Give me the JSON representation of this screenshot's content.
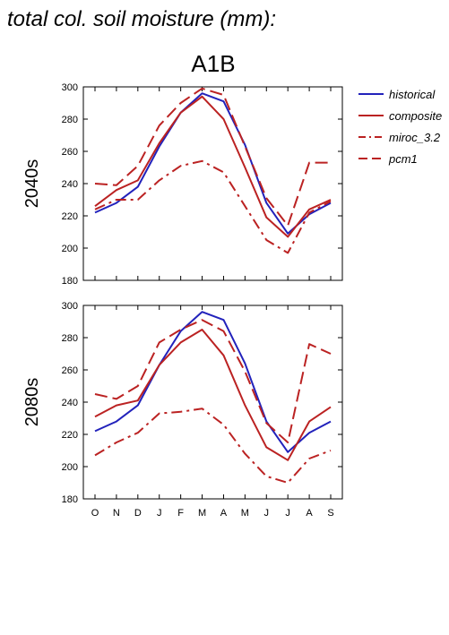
{
  "title": "total col. soil moisture (mm):",
  "scenario": "A1B",
  "colors": {
    "historical": "#2222bb",
    "model": "#bb2222"
  },
  "legend": [
    {
      "name": "historical",
      "color": "#2222bb",
      "dash": "solid"
    },
    {
      "name": "composite",
      "color": "#bb2222",
      "dash": "solid"
    },
    {
      "name": "miroc_3.2",
      "color": "#bb2222",
      "dash": "dashdot"
    },
    {
      "name": "pcm1",
      "color": "#bb2222",
      "dash": "dashed"
    }
  ],
  "chart_data": [
    {
      "type": "line",
      "panel_label": "2040s",
      "categories": [
        "O",
        "N",
        "D",
        "J",
        "F",
        "M",
        "A",
        "M",
        "J",
        "J",
        "A",
        "S"
      ],
      "ylim": [
        180,
        300
      ],
      "yticks": [
        180,
        200,
        220,
        240,
        260,
        280,
        300
      ],
      "series": [
        {
          "name": "historical",
          "values": [
            222,
            228,
            238,
            263,
            284,
            296,
            291,
            264,
            228,
            209,
            221,
            228
          ]
        },
        {
          "name": "composite",
          "values": [
            226,
            236,
            242,
            265,
            284,
            294,
            280,
            250,
            219,
            207,
            224,
            230
          ]
        },
        {
          "name": "miroc_3.2",
          "values": [
            224,
            230,
            230,
            242,
            251,
            254,
            247,
            226,
            205,
            197,
            222,
            229
          ]
        },
        {
          "name": "pcm1",
          "values": [
            240,
            239,
            251,
            276,
            290,
            299,
            295,
            263,
            231,
            214,
            253,
            253
          ]
        }
      ]
    },
    {
      "type": "line",
      "panel_label": "2080s",
      "categories": [
        "O",
        "N",
        "D",
        "J",
        "F",
        "M",
        "A",
        "M",
        "J",
        "J",
        "A",
        "S"
      ],
      "ylim": [
        180,
        300
      ],
      "yticks": [
        180,
        200,
        220,
        240,
        260,
        280,
        300
      ],
      "series": [
        {
          "name": "historical",
          "values": [
            222,
            228,
            238,
            263,
            284,
            296,
            291,
            264,
            228,
            209,
            221,
            228
          ]
        },
        {
          "name": "composite",
          "values": [
            231,
            238,
            241,
            263,
            277,
            285,
            269,
            238,
            212,
            204,
            228,
            237
          ]
        },
        {
          "name": "miroc_3.2",
          "values": [
            207,
            215,
            221,
            233,
            234,
            236,
            226,
            208,
            194,
            190,
            205,
            210
          ]
        },
        {
          "name": "pcm1",
          "values": [
            245,
            242,
            250,
            277,
            285,
            291,
            284,
            259,
            227,
            215,
            276,
            270
          ]
        }
      ]
    }
  ]
}
